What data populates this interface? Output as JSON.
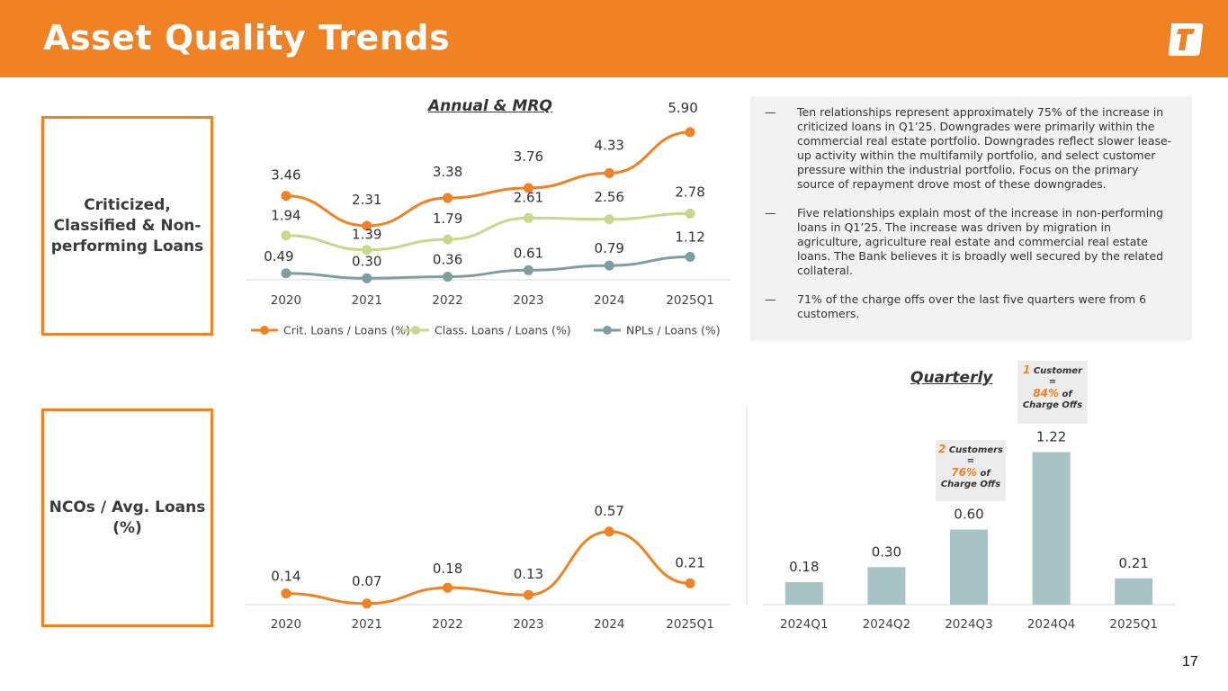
{
  "header": {
    "title": "Asset Quality Trends"
  },
  "labels": {
    "box1": "Criticized, Classified & Non-performing Loans",
    "box2": "NCOs / Avg. Loans (%)"
  },
  "sections": {
    "annual": "Annual & MRQ",
    "quarterly": "Quarterly"
  },
  "notes": [
    {
      "dash": "—",
      "text": "Ten relationships represent approximately 75% of the increase in criticized loans in Q1’25. Downgrades were primarily within the commercial real estate portfolio. Downgrades reflect slower lease-up activity within the multifamily portfolio, and select customer pressure within the industrial portfolio. Focus on the primary source of repayment drove most of these downgrades."
    },
    {
      "dash": "—",
      "text": "Five relationships explain most of the increase in non-performing loans in Q1’25. The increase was driven by migration in agriculture, agriculture real estate and commercial real estate loans. The Bank believes it is broadly well secured by the related collateral."
    },
    {
      "dash": "—",
      "text": "71% of the charge offs over the last five quarters were from 6 customers."
    }
  ],
  "callouts": {
    "c1": {
      "count": "1",
      "unit": "Customer",
      "eq": "=",
      "pct": "84%",
      "tail": "of",
      "tail2": "Charge Offs"
    },
    "c2": {
      "count": "2",
      "unit": "Customers",
      "eq": "=",
      "pct": "76%",
      "tail": "of",
      "tail2": "Charge Offs"
    }
  },
  "page_number": "17",
  "colors": {
    "accent": "#f08223",
    "light_green": "#c5d98b",
    "slate": "#7f9ea3",
    "bar": "#a7c3c6"
  },
  "chart_data": [
    {
      "id": "annual",
      "type": "line",
      "title": "Annual & MRQ",
      "categories": [
        "2020",
        "2021",
        "2022",
        "2023",
        "2024",
        "2025Q1"
      ],
      "series": [
        {
          "name": "Crit. Loans / Loans (%)",
          "values": [
            3.46,
            2.31,
            3.38,
            3.76,
            4.33,
            5.9
          ],
          "labels": [
            "3.46",
            "2.31",
            "3.38",
            "3.76",
            "4.33",
            "5.90"
          ],
          "color": "#f08223"
        },
        {
          "name": "Class. Loans / Loans (%)",
          "values": [
            1.94,
            1.39,
            1.79,
            2.61,
            2.56,
            2.78
          ],
          "labels": [
            "1.94",
            "1.39",
            "1.79",
            "2.61",
            "2.56",
            "2.78"
          ],
          "color": "#c5d98b"
        },
        {
          "name": "NPLs / Loans (%)",
          "values": [
            0.49,
            0.3,
            0.36,
            0.61,
            0.79,
            1.12
          ],
          "labels": [
            "0.49",
            "0.30",
            "0.36",
            "0.61",
            "0.79",
            "1.12"
          ],
          "color": "#7f9ea3"
        }
      ],
      "legend": "bottom"
    },
    {
      "id": "nco_annual",
      "type": "line",
      "categories": [
        "2020",
        "2021",
        "2022",
        "2023",
        "2024",
        "2025Q1"
      ],
      "series": [
        {
          "name": "NCOs / Avg. Loans (%)",
          "values": [
            0.14,
            0.07,
            0.18,
            0.13,
            0.57,
            0.21
          ],
          "labels": [
            "0.14",
            "0.07",
            "0.18",
            "0.13",
            "0.57",
            "0.21"
          ],
          "color": "#f08223"
        }
      ]
    },
    {
      "id": "nco_quarterly",
      "type": "bar",
      "title": "Quarterly",
      "categories": [
        "2024Q1",
        "2024Q2",
        "2024Q3",
        "2024Q4",
        "2025Q1"
      ],
      "values": [
        0.18,
        0.3,
        0.6,
        1.22,
        0.21
      ],
      "labels": [
        "0.18",
        "0.30",
        "0.60",
        "1.22",
        "0.21"
      ],
      "color": "#a7c3c6"
    }
  ]
}
